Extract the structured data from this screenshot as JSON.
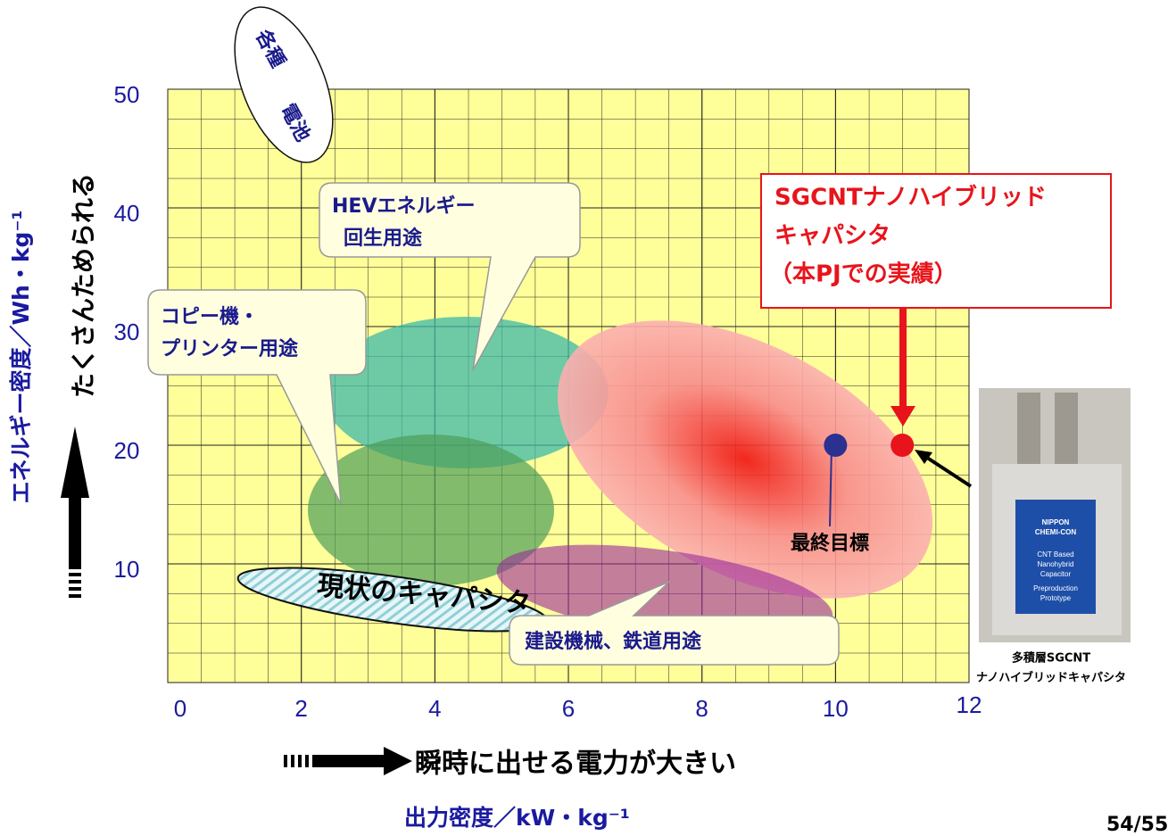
{
  "chart_data": {
    "type": "scatter",
    "xlabel": "出力密度／kW・kg⁻¹",
    "xlabel_note": "瞬時に出せる電力が大きい",
    "ylabel": "エネルギー密度／Wh・kg⁻¹",
    "ylabel_note": "たくさんためられる",
    "xlim": [
      0,
      12
    ],
    "ylim": [
      0,
      50
    ],
    "xticks": [
      0,
      2,
      4,
      6,
      8,
      10,
      12
    ],
    "yticks": [
      10,
      20,
      30,
      40,
      50
    ],
    "grid": true,
    "series": [
      {
        "color": "#2b3190",
        "x": [
          10
        ],
        "values": [
          20
        ]
      },
      {
        "color": "#e8141b",
        "x": [
          11
        ],
        "values": [
          20
        ]
      }
    ],
    "annotations": {
      "batteries": [
        "各種",
        "電池"
      ],
      "hev": [
        "HEVエネルギー",
        "回生用途"
      ],
      "copier": [
        "コピー機・",
        "プリンター用途"
      ],
      "capacitor": "現状のキャパシタ",
      "construction": "建設機械、鉄道用途",
      "sgcnt": [
        "SGCNTナノハイブリッド",
        "キャパシタ",
        "（本PJでの実績）"
      ],
      "target": "最終目標"
    },
    "photo": {
      "labels": [
        "NIPPON",
        "CHEMI-CON",
        "CNT Based",
        "Nanohybrid",
        "Capacitor",
        "Preproduction",
        "Prototype"
      ],
      "caption": [
        "多積層SGCNT",
        "ナノハイブリッドキャパシタ"
      ]
    }
  },
  "page_number": "54/55"
}
